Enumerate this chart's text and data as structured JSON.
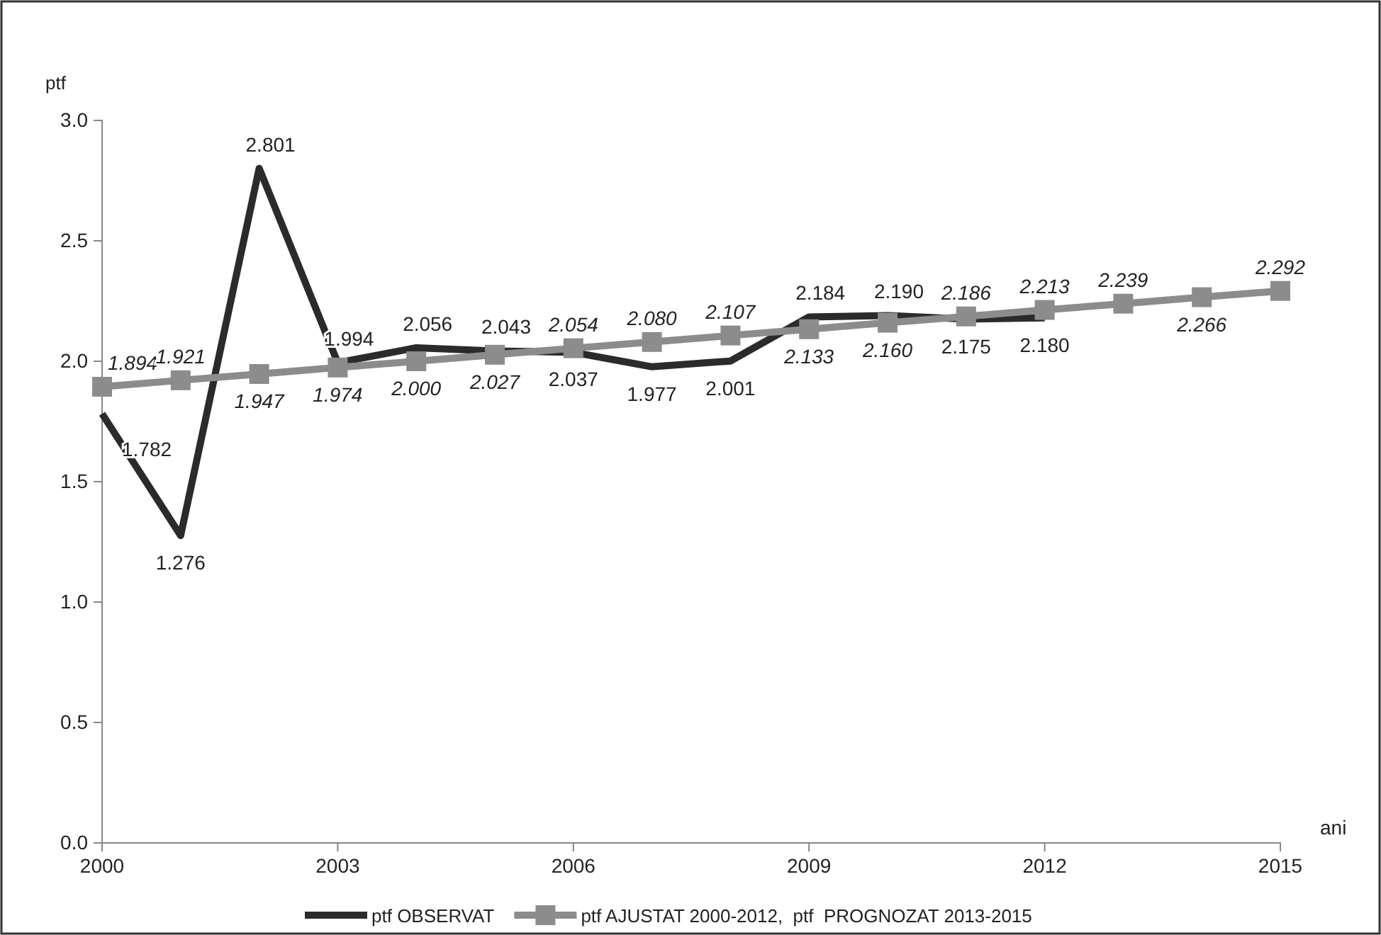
{
  "chart_data": {
    "type": "line",
    "xlabel": "ani",
    "ylabel": "ptf",
    "x": [
      2000,
      2001,
      2002,
      2003,
      2004,
      2005,
      2006,
      2007,
      2008,
      2009,
      2010,
      2011,
      2012,
      2013,
      2014,
      2015
    ],
    "xlim": [
      2000,
      2015
    ],
    "xticks": [
      2000,
      2003,
      2006,
      2009,
      2012,
      2015
    ],
    "ylim": [
      0,
      3
    ],
    "yticks": [
      {
        "value": 0,
        "label": "0.0"
      },
      {
        "value": 0.5,
        "label": "0.5"
      },
      {
        "value": 1,
        "label": "1.0"
      },
      {
        "value": 1.5,
        "label": "1.5"
      },
      {
        "value": 2,
        "label": "2.0"
      },
      {
        "value": 2.5,
        "label": "2.5"
      },
      {
        "value": 3,
        "label": "3.0"
      }
    ],
    "grid": false,
    "legend": "bottom",
    "line_style": "solid",
    "series": [
      {
        "name": "ptf OBSERVAT",
        "color": "#2b2b2b",
        "marker": "none",
        "values": [
          1.782,
          1.276,
          2.801,
          1.994,
          2.056,
          2.043,
          2.037,
          1.977,
          2.001,
          2.184,
          2.19,
          2.175,
          2.18,
          null,
          null,
          null
        ],
        "value_labels": [
          "1.782",
          "1.276",
          "2.801",
          "1.994",
          "2.056",
          "2.043",
          "2.037",
          "1.977",
          "2.001",
          "2.184",
          "2.190",
          "2.175",
          "2.180",
          null,
          null,
          null
        ]
      },
      {
        "name": "ptf AJUSTAT 2000-2012,  ptf  PROGNOZAT 2013-2015",
        "color": "#8c8c8c",
        "marker": "square",
        "values": [
          1.894,
          1.921,
          1.947,
          1.974,
          2.0,
          2.027,
          2.054,
          2.08,
          2.107,
          2.133,
          2.16,
          2.186,
          2.213,
          2.239,
          2.266,
          2.292
        ],
        "value_labels": [
          "1.894",
          "1.921",
          "1.947",
          "1.974",
          "2.000",
          "2.027",
          "2.054",
          "2.080",
          "2.107",
          "2.133",
          "2.160",
          "2.186",
          "2.213",
          "2.239",
          "2.266",
          "2.292"
        ]
      }
    ]
  }
}
